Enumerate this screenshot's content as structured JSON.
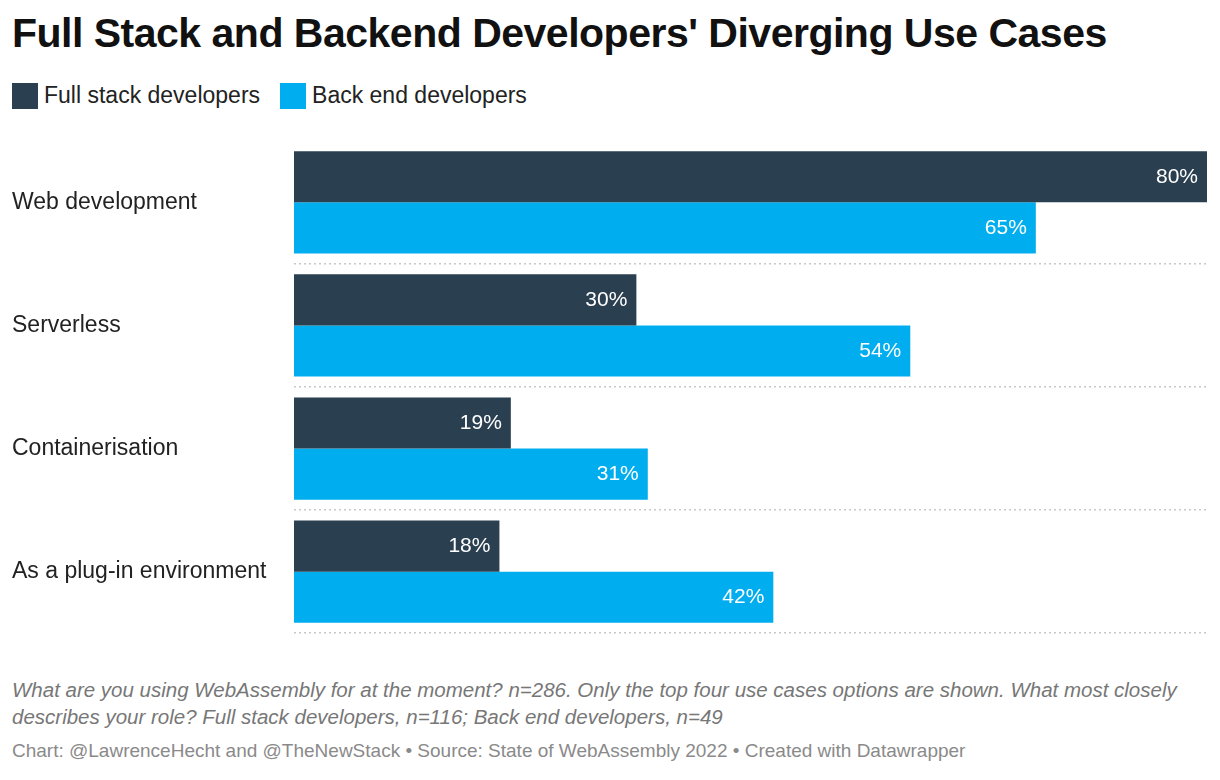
{
  "chart_data": {
    "type": "bar",
    "orientation": "horizontal",
    "title": "Full Stack and Backend Developers' Diverging Use Cases",
    "categories": [
      "Web development",
      "Serverless",
      "Containerisation",
      "As a plug-in environment"
    ],
    "series": [
      {
        "name": "Full stack developers",
        "color": "#2a3f50",
        "values": [
          80,
          30,
          19,
          18
        ],
        "value_labels": [
          "80%",
          "30%",
          "19%",
          "18%"
        ]
      },
      {
        "name": "Back end developers",
        "color": "#00aeef",
        "values": [
          65,
          54,
          31,
          42
        ],
        "value_labels": [
          "65%",
          "54%",
          "31%",
          "42%"
        ]
      }
    ],
    "xlim": [
      0,
      80
    ],
    "tick_labels": "y",
    "grid": true,
    "legend": "top-left",
    "data_labels": true,
    "annotations": [
      "What are you using WebAssembly for at the moment? n=286. Only the top four use cases options are shown. What most closely describes your role? Full stack developers, n=116; Back end developers, n=49",
      "Chart: @LawrenceHecht and @TheNewStack • Source: State of WebAssembly 2022 • Created with Datawrapper"
    ]
  }
}
